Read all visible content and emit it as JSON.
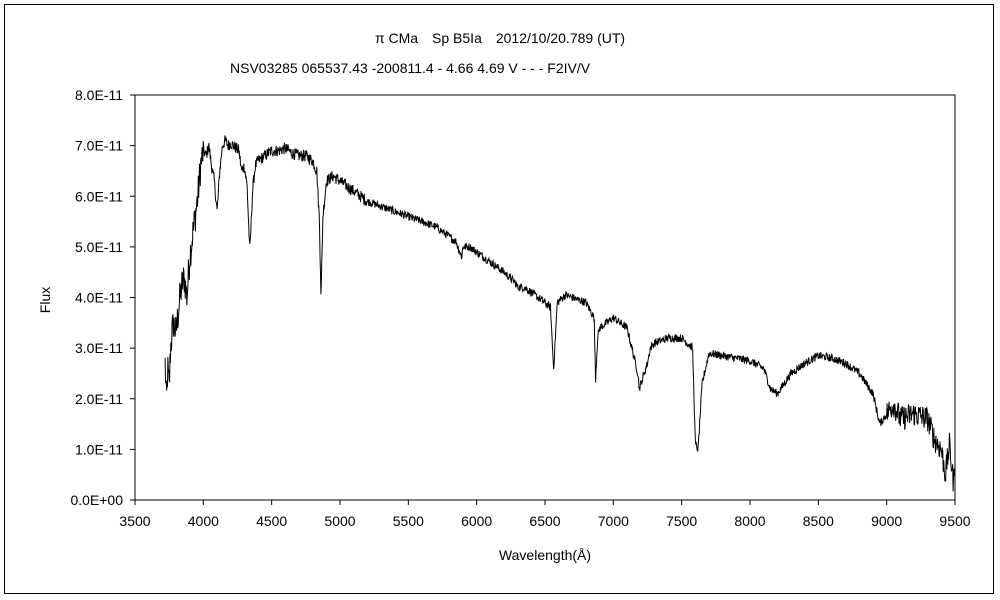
{
  "chart_data": {
    "type": "line",
    "title": "π CMa　Sp B5Ia　2012/10/20.789 (UT)",
    "subtitle": "NSV03285 065537.43 -200811.4 - 4.66 4.69 V - - - F2IV/V",
    "xlabel": "Wavelength(Å)",
    "ylabel": "Flux",
    "xlim": [
      3500,
      9500
    ],
    "ylim": [
      0,
      8e-11
    ],
    "x_ticks": [
      "3500",
      "4000",
      "4500",
      "5000",
      "5500",
      "6000",
      "6500",
      "7000",
      "7500",
      "8000",
      "8500",
      "9000",
      "9500"
    ],
    "y_ticks": [
      "0.0E+00",
      "1.0E-11",
      "2.0E-11",
      "3.0E-11",
      "4.0E-11",
      "5.0E-11",
      "6.0E-11",
      "7.0E-11",
      "8.0E-11"
    ],
    "grid": false,
    "legend": "none",
    "series": [
      {
        "color": "#000000",
        "x": [
          3720,
          3730,
          3740,
          3750,
          3760,
          3780,
          3800,
          3820,
          3840,
          3860,
          3880,
          3900,
          3920,
          3940,
          3960,
          3980,
          4000,
          4020,
          4040,
          4060,
          4080,
          4101,
          4120,
          4140,
          4160,
          4180,
          4200,
          4220,
          4240,
          4260,
          4280,
          4300,
          4320,
          4340,
          4360,
          4380,
          4400,
          4450,
          4500,
          4550,
          4600,
          4650,
          4700,
          4750,
          4800,
          4830,
          4850,
          4861,
          4875,
          4900,
          4950,
          5000,
          5100,
          5200,
          5300,
          5400,
          5500,
          5600,
          5700,
          5800,
          5850,
          5890,
          5900,
          5950,
          6000,
          6100,
          6200,
          6280,
          6300,
          6350,
          6400,
          6500,
          6540,
          6563,
          6590,
          6650,
          6700,
          6800,
          6860,
          6870,
          6885,
          6900,
          6950,
          7000,
          7100,
          7180,
          7190,
          7250,
          7270,
          7300,
          7400,
          7500,
          7580,
          7600,
          7620,
          7650,
          7700,
          7800,
          7900,
          8000,
          8100,
          8150,
          8200,
          8250,
          8300,
          8400,
          8500,
          8600,
          8700,
          8800,
          8900,
          8950,
          9000,
          9050,
          9100,
          9200,
          9300,
          9350,
          9400,
          9430,
          9460,
          9490,
          9500
        ],
        "y": [
          2.7e-11,
          1.9e-11,
          2.6e-11,
          2.2e-11,
          3e-11,
          3.5e-11,
          3.3e-11,
          3.8e-11,
          4.2e-11,
          4.4e-11,
          4e-11,
          4.8e-11,
          5.2e-11,
          5.6e-11,
          6e-11,
          6.6e-11,
          6.9e-11,
          6.8e-11,
          7e-11,
          6.6e-11,
          6.3e-11,
          5.7e-11,
          6.5e-11,
          7e-11,
          7.1e-11,
          7e-11,
          7.05e-11,
          7e-11,
          6.95e-11,
          6.9e-11,
          6.5e-11,
          6.6e-11,
          6.2e-11,
          4.9e-11,
          6.1e-11,
          6.6e-11,
          6.7e-11,
          6.8e-11,
          6.9e-11,
          6.9e-11,
          6.95e-11,
          6.85e-11,
          6.8e-11,
          6.8e-11,
          6.7e-11,
          6.5e-11,
          5.5e-11,
          4e-11,
          5.6e-11,
          6.3e-11,
          6.4e-11,
          6.3e-11,
          6.1e-11,
          5.9e-11,
          5.8e-11,
          5.7e-11,
          5.6e-11,
          5.5e-11,
          5.4e-11,
          5.2e-11,
          5.1e-11,
          4.8e-11,
          5e-11,
          5e-11,
          4.9e-11,
          4.7e-11,
          4.5e-11,
          4.3e-11,
          4.2e-11,
          4.2e-11,
          4.1e-11,
          3.9e-11,
          3.8e-11,
          2.6e-11,
          3.9e-11,
          4.05e-11,
          4e-11,
          3.9e-11,
          3.6e-11,
          2.4e-11,
          3.2e-11,
          3.4e-11,
          3.5e-11,
          3.6e-11,
          3.4e-11,
          2.5e-11,
          2.2e-11,
          2.7e-11,
          3e-11,
          3.1e-11,
          3.2e-11,
          3.2e-11,
          3e-11,
          1.1e-11,
          1e-11,
          2.3e-11,
          2.9e-11,
          2.85e-11,
          2.8e-11,
          2.75e-11,
          2.6e-11,
          2.2e-11,
          2.1e-11,
          2.3e-11,
          2.5e-11,
          2.7e-11,
          2.85e-11,
          2.8e-11,
          2.7e-11,
          2.5e-11,
          2.1e-11,
          1.5e-11,
          1.7e-11,
          1.9e-11,
          1.6e-11,
          1.7e-11,
          1.6e-11,
          1.2e-11,
          1e-11,
          5e-12,
          1.1e-11,
          3e-12,
          8e-12
        ]
      }
    ]
  }
}
